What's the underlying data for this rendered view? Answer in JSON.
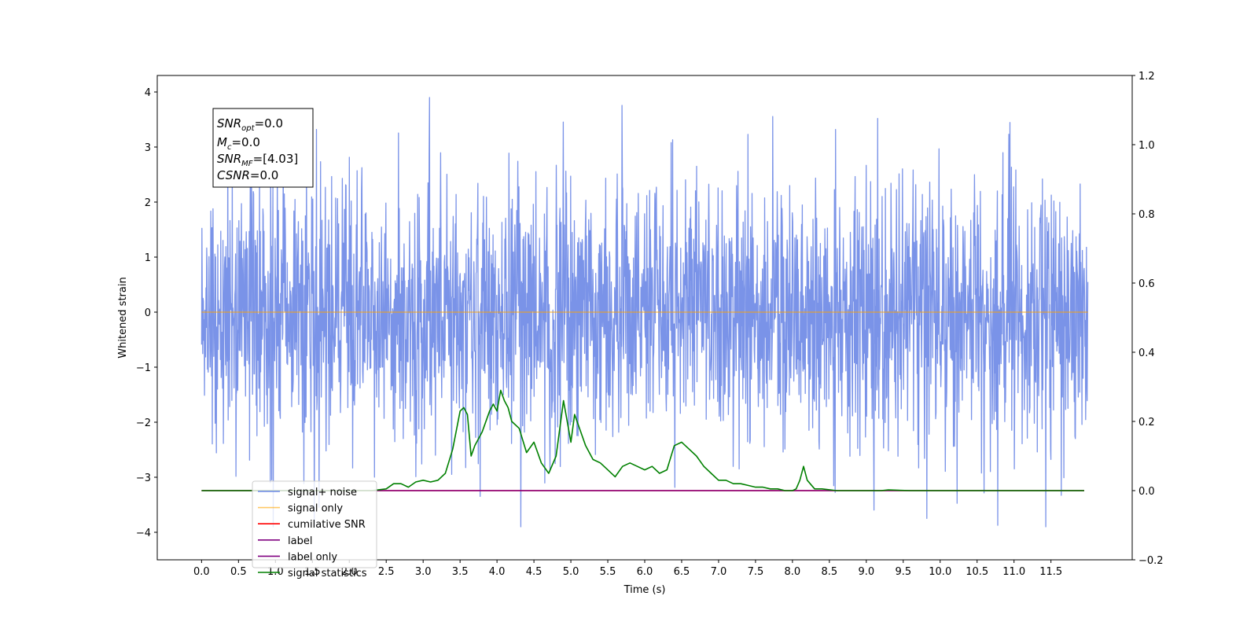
{
  "chart_data": {
    "type": "line",
    "xlabel": "Time (s)",
    "ylabel": "Whitened strain",
    "xlim": [
      -0.6,
      12.6
    ],
    "ylim_left": [
      -4.5,
      4.3
    ],
    "ylim_right": [
      -0.2,
      1.2
    ],
    "x_ticks": [
      "0.0",
      "0.5",
      "1.0",
      "1.5",
      "2.0",
      "2.5",
      "3.0",
      "3.5",
      "4.0",
      "4.5",
      "5.0",
      "5.5",
      "6.0",
      "6.5",
      "7.0",
      "7.5",
      "8.0",
      "8.5",
      "9.0",
      "9.5",
      "10.0",
      "10.5",
      "11.0",
      "11.5"
    ],
    "y_left_ticks": [
      -4,
      -3,
      -2,
      -1,
      0,
      1,
      2,
      3,
      4
    ],
    "y_left_tick_labels": [
      "−4",
      "−3",
      "−2",
      "−1",
      "0",
      "1",
      "2",
      "3",
      "4"
    ],
    "y_right_ticks": [
      -0.2,
      0.0,
      0.2,
      0.4,
      0.6,
      0.8,
      1.0,
      1.2
    ],
    "y_right_tick_labels": [
      "−0.2",
      "0.0",
      "0.2",
      "0.4",
      "0.6",
      "0.8",
      "1.0",
      "1.2"
    ],
    "grid": false,
    "legend_position": "lower-left",
    "annotation": {
      "lines": [
        {
          "var": "SNR",
          "sub": "opt",
          "value": "=0.0"
        },
        {
          "var": "M",
          "sub": "c",
          "value": "=0.0"
        },
        {
          "var": "SNR",
          "sub": "MF",
          "value": "=[4.03]"
        },
        {
          "var": "CSNR",
          "sub": "",
          "value": "=0.0"
        }
      ]
    },
    "series": [
      {
        "name": "signal+ noise",
        "axis": "left",
        "color": "#6b87e6",
        "kind": "gaussian-noise",
        "x_range": [
          0,
          12.0
        ],
        "std": 1.0,
        "points": 2400
      },
      {
        "name": "signal only",
        "axis": "left",
        "color": "#ffa500",
        "x": [
          0,
          12.0
        ],
        "y": [
          0,
          0
        ]
      },
      {
        "name": "cumilative SNR",
        "axis": "right",
        "color": "#ff0000",
        "x": [
          0,
          11.95
        ],
        "y": [
          0,
          0
        ]
      },
      {
        "name": "label",
        "axis": "right",
        "color": "#800080",
        "x": [
          0,
          11.95
        ],
        "y": [
          0,
          0
        ]
      },
      {
        "name": "label only",
        "axis": "right",
        "color": "#800080",
        "x": [],
        "y": []
      },
      {
        "name": "signal statistics",
        "axis": "right",
        "color": "#008000",
        "x": [
          0.0,
          2.0,
          2.3,
          2.5,
          2.6,
          2.7,
          2.8,
          2.9,
          3.0,
          3.1,
          3.2,
          3.3,
          3.4,
          3.5,
          3.55,
          3.6,
          3.65,
          3.7,
          3.8,
          3.9,
          3.95,
          4.0,
          4.05,
          4.1,
          4.15,
          4.2,
          4.3,
          4.4,
          4.5,
          4.6,
          4.7,
          4.8,
          4.9,
          5.0,
          5.05,
          5.1,
          5.2,
          5.3,
          5.4,
          5.5,
          5.6,
          5.7,
          5.8,
          5.9,
          6.0,
          6.1,
          6.2,
          6.3,
          6.4,
          6.5,
          6.6,
          6.7,
          6.8,
          6.9,
          7.0,
          7.1,
          7.2,
          7.3,
          7.4,
          7.5,
          7.6,
          7.7,
          7.8,
          7.9,
          8.0,
          8.05,
          8.1,
          8.15,
          8.2,
          8.3,
          8.4,
          8.6,
          9.0,
          9.2,
          9.3,
          9.6,
          11.95
        ],
        "y": [
          0.0,
          0.0,
          0.0,
          0.005,
          0.02,
          0.02,
          0.01,
          0.025,
          0.03,
          0.025,
          0.03,
          0.05,
          0.12,
          0.23,
          0.24,
          0.22,
          0.1,
          0.13,
          0.17,
          0.23,
          0.25,
          0.23,
          0.29,
          0.26,
          0.24,
          0.2,
          0.18,
          0.11,
          0.14,
          0.08,
          0.05,
          0.1,
          0.26,
          0.14,
          0.22,
          0.19,
          0.13,
          0.09,
          0.08,
          0.06,
          0.04,
          0.07,
          0.08,
          0.07,
          0.06,
          0.07,
          0.05,
          0.06,
          0.13,
          0.14,
          0.12,
          0.1,
          0.07,
          0.05,
          0.03,
          0.03,
          0.02,
          0.02,
          0.015,
          0.01,
          0.01,
          0.005,
          0.005,
          0.0,
          0.0,
          0.005,
          0.03,
          0.07,
          0.03,
          0.005,
          0.005,
          0.0,
          0.0,
          0.0,
          0.002,
          0.0,
          0.0
        ]
      }
    ]
  }
}
